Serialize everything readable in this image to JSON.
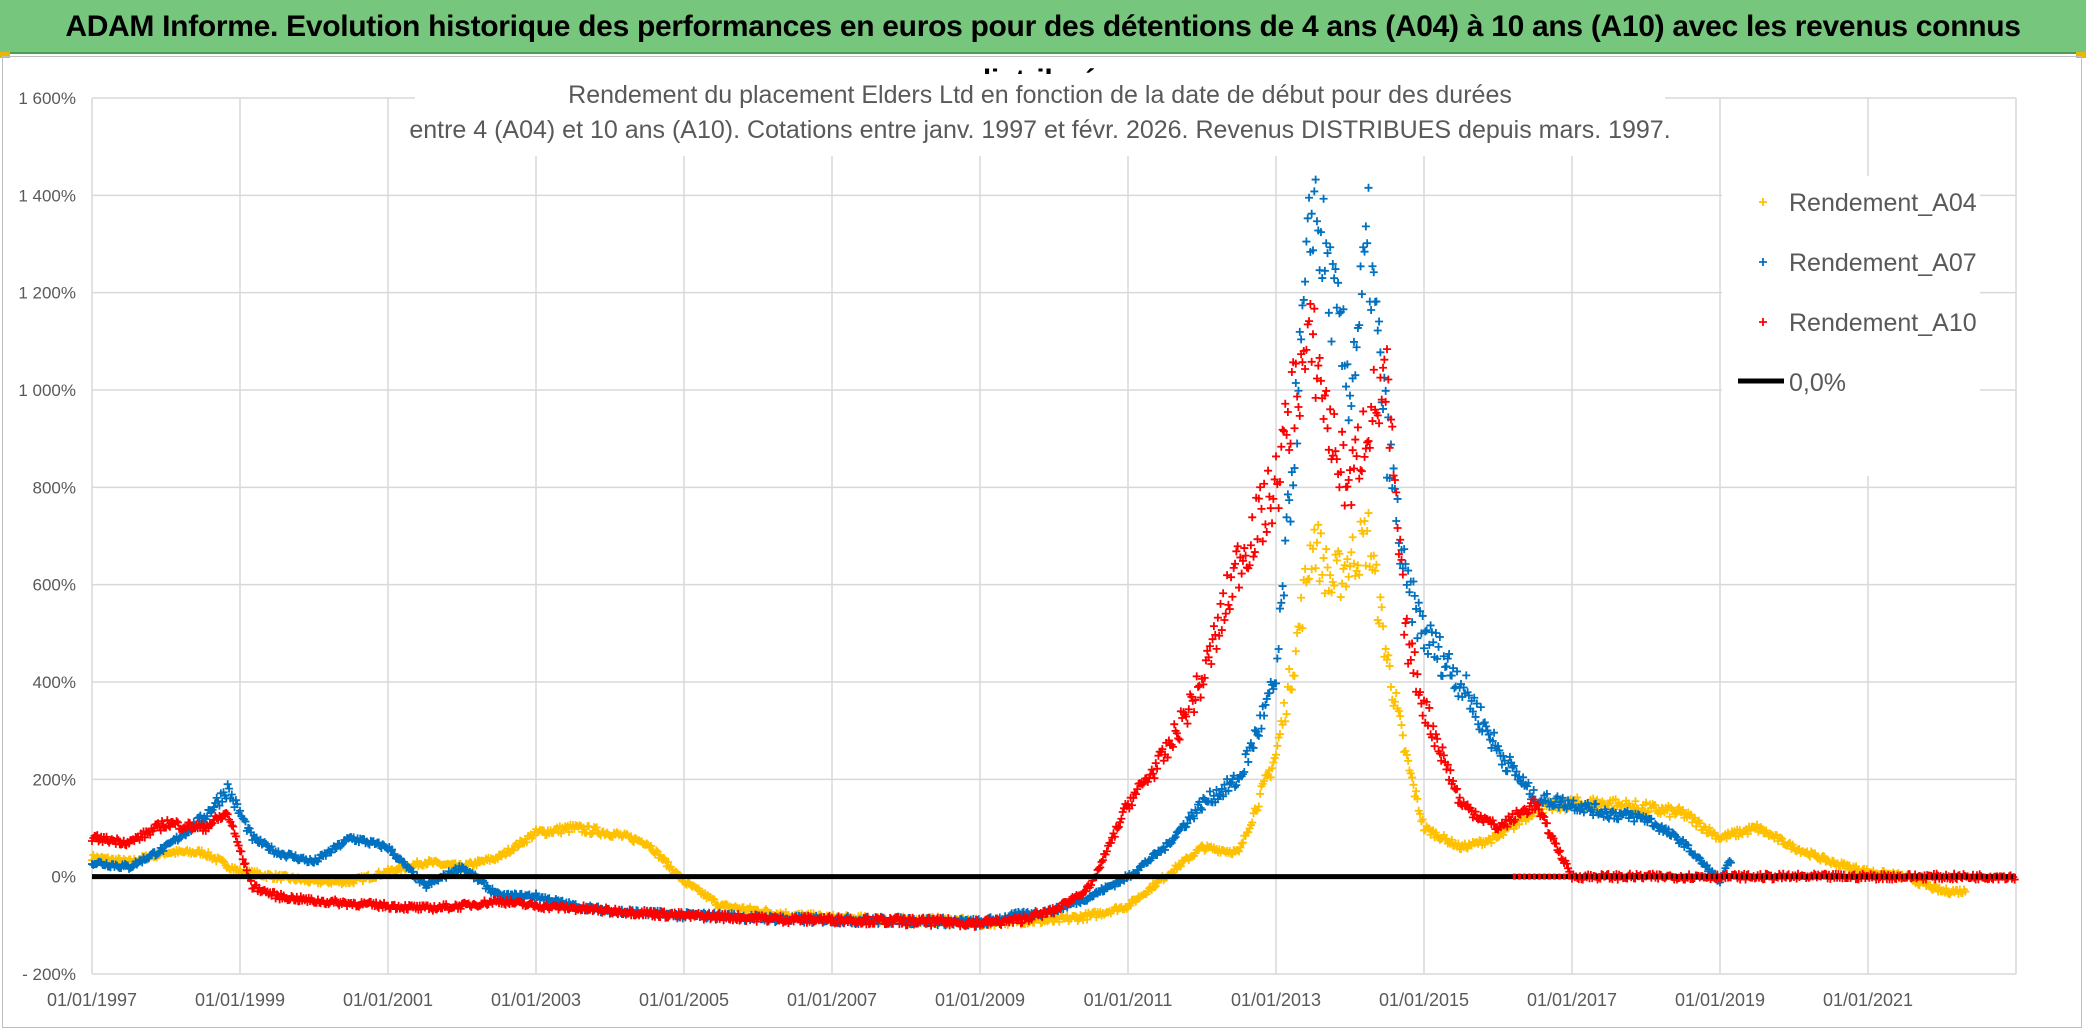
{
  "header": {
    "banner": "ADAM Informe. Evolution historique des performances en euros pour des détentions de 4 ans (A04) à 10 ans (A10) avec les revenus connus distribués"
  },
  "colors": {
    "banner_bg": "#77c67d",
    "A04": "#ffc000",
    "A07": "#0070c0",
    "A10": "#ff0000",
    "zero": "#000000",
    "grid": "#d9d9d9"
  },
  "chart_data": {
    "type": "scatter",
    "title": "Rendement du placement Elders Ltd en fonction de la date de début pour des durées",
    "subtitle": "entre 4 (A04) et 10 ans (A10). Cotations entre janv. 1997 et févr. 2026. Revenus DISTRIBUES depuis mars. 1997.",
    "xlabel": "",
    "ylabel": "",
    "x_range": [
      "01/01/1997",
      "01/01/2023"
    ],
    "ylim": [
      -200,
      1600
    ],
    "y_ticks": [
      "- 200%",
      "0%",
      "200%",
      "400%",
      "600%",
      "800%",
      "1 000%",
      "1 200%",
      "1 400%",
      "1 600%"
    ],
    "x_ticks": [
      "01/01/1997",
      "01/01/1999",
      "01/01/2001",
      "01/01/2003",
      "01/01/2005",
      "01/01/2007",
      "01/01/2009",
      "01/01/2011",
      "01/01/2013",
      "01/01/2015",
      "01/01/2017",
      "01/01/2019",
      "01/01/2021"
    ],
    "grid": true,
    "legend_position": "top-right",
    "series": [
      {
        "name": "Rendement_A04",
        "x": [
          "1997-01",
          "1997-07",
          "1998-01",
          "1998-07",
          "1999-01",
          "1999-07",
          "2000-01",
          "2000-07",
          "2001-01",
          "2001-07",
          "2002-01",
          "2002-07",
          "2003-01",
          "2003-07",
          "2004-01",
          "2004-07",
          "2005-01",
          "2005-07",
          "2006-01",
          "2006-07",
          "2007-01",
          "2007-07",
          "2008-01",
          "2008-07",
          "2009-01",
          "2009-07",
          "2010-01",
          "2010-07",
          "2011-01",
          "2011-07",
          "2012-01",
          "2012-07",
          "2013-01",
          "2013-04",
          "2013-07",
          "2013-10",
          "2014-01",
          "2014-04",
          "2014-07",
          "2014-10",
          "2015-01",
          "2015-07",
          "2016-01",
          "2016-07",
          "2017-01",
          "2017-07",
          "2018-01",
          "2018-07",
          "2019-01",
          "2019-07",
          "2020-01",
          "2020-07",
          "2021-01",
          "2021-07",
          "2022-01",
          "2022-05"
        ],
        "values": [
          40,
          30,
          50,
          50,
          10,
          0,
          -10,
          -10,
          10,
          30,
          20,
          40,
          90,
          100,
          90,
          70,
          -10,
          -60,
          -70,
          -80,
          -85,
          -88,
          -90,
          -90,
          -95,
          -90,
          -90,
          -80,
          -60,
          0,
          60,
          50,
          250,
          450,
          700,
          600,
          650,
          700,
          450,
          250,
          100,
          60,
          80,
          140,
          150,
          150,
          140,
          130,
          80,
          100,
          60,
          30,
          10,
          0,
          -30,
          -30
        ]
      },
      {
        "name": "Rendement_A07",
        "x": [
          "1997-01",
          "1997-07",
          "1998-01",
          "1998-07",
          "1998-11",
          "1999-03",
          "1999-07",
          "2000-01",
          "2000-07",
          "2001-01",
          "2001-07",
          "2002-01",
          "2002-07",
          "2003-01",
          "2003-07",
          "2004-01",
          "2004-07",
          "2005-01",
          "2005-07",
          "2006-01",
          "2006-07",
          "2007-01",
          "2007-07",
          "2008-01",
          "2008-07",
          "2009-01",
          "2009-07",
          "2010-01",
          "2010-07",
          "2011-01",
          "2011-07",
          "2012-01",
          "2012-07",
          "2013-01",
          "2013-04",
          "2013-07",
          "2013-10",
          "2014-01",
          "2014-04",
          "2014-07",
          "2014-10",
          "2015-01",
          "2015-07",
          "2016-01",
          "2016-07",
          "2017-01",
          "2017-07",
          "2018-01",
          "2018-07",
          "2019-01",
          "2019-03"
        ],
        "values": [
          30,
          20,
          60,
          120,
          180,
          80,
          50,
          30,
          80,
          60,
          -20,
          20,
          -40,
          -40,
          -60,
          -70,
          -75,
          -80,
          -80,
          -85,
          -88,
          -88,
          -90,
          -90,
          -92,
          -95,
          -80,
          -70,
          -40,
          0,
          60,
          150,
          200,
          400,
          900,
          1400,
          1200,
          1000,
          1300,
          900,
          600,
          500,
          400,
          260,
          160,
          150,
          130,
          120,
          70,
          -10,
          40
        ]
      },
      {
        "name": "Rendement_A10",
        "x": [
          "1997-01",
          "1997-07",
          "1998-01",
          "1998-07",
          "1998-11",
          "1999-03",
          "1999-07",
          "2000-01",
          "2000-07",
          "2001-01",
          "2001-07",
          "2002-01",
          "2002-07",
          "2003-01",
          "2003-07",
          "2004-01",
          "2004-07",
          "2005-01",
          "2005-07",
          "2006-01",
          "2006-07",
          "2007-01",
          "2007-07",
          "2008-01",
          "2008-07",
          "2009-01",
          "2009-07",
          "2010-01",
          "2010-07",
          "2011-01",
          "2011-07",
          "2012-01",
          "2012-07",
          "2013-01",
          "2013-04",
          "2013-07",
          "2013-10",
          "2014-01",
          "2014-04",
          "2014-07",
          "2014-10",
          "2015-01",
          "2015-07",
          "2016-01",
          "2016-07",
          "2017-01",
          "2018-01",
          "2019-01",
          "2020-01",
          "2021-01",
          "2022-01",
          "2023-01"
        ],
        "values": [
          80,
          70,
          110,
          100,
          130,
          -20,
          -40,
          -50,
          -55,
          -60,
          -65,
          -60,
          -50,
          -60,
          -65,
          -70,
          -75,
          -80,
          -82,
          -85,
          -88,
          -88,
          -90,
          -92,
          -93,
          -95,
          -90,
          -70,
          -20,
          150,
          250,
          400,
          650,
          800,
          1000,
          1100,
          900,
          800,
          950,
          1000,
          500,
          350,
          150,
          100,
          150,
          0,
          0,
          0,
          0,
          0,
          0,
          0
        ]
      },
      {
        "name": "0,0%",
        "x": [
          "1997-01",
          "2023-01"
        ],
        "values": [
          0,
          0
        ]
      }
    ]
  }
}
